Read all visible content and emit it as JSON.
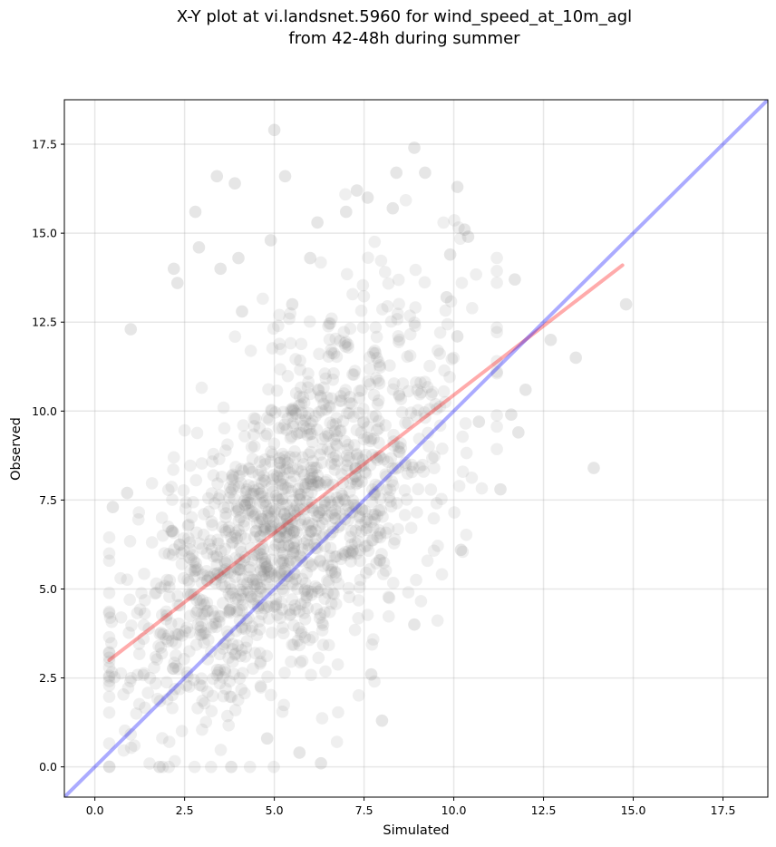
{
  "chart_data": {
    "type": "scatter",
    "title_line1": "X-Y plot at vi.landsnet.5960 for wind_speed_at_10m_agl",
    "title_line2": "from 42-48h during summer",
    "xlabel": "Simulated",
    "ylabel": "Observed",
    "xlim": [
      -0.85,
      18.75
    ],
    "ylim": [
      -0.85,
      18.75
    ],
    "x_ticks": [
      "0.0",
      "2.5",
      "5.0",
      "7.5",
      "10.0",
      "12.5",
      "15.0",
      "17.5"
    ],
    "y_ticks": [
      "0.0",
      "2.5",
      "5.0",
      "7.5",
      "10.0",
      "12.5",
      "15.0",
      "17.5"
    ],
    "grid": true,
    "point_color": "#808080",
    "regression_color": "#ff0000",
    "identity_color": "#0000ff",
    "regression_line": {
      "x": [
        0.4,
        14.7
      ],
      "y": [
        3.0,
        14.1
      ]
    },
    "identity_line": {
      "x": [
        -0.85,
        18.75
      ],
      "y": [
        -0.85,
        18.75
      ]
    },
    "outliers": [
      [
        1.0,
        12.3
      ],
      [
        2.2,
        14.0
      ],
      [
        2.8,
        15.6
      ],
      [
        3.4,
        16.6
      ],
      [
        3.9,
        16.4
      ],
      [
        5.0,
        17.9
      ],
      [
        5.3,
        16.6
      ],
      [
        7.3,
        16.2
      ],
      [
        8.9,
        17.4
      ],
      [
        8.4,
        16.7
      ],
      [
        9.2,
        16.7
      ],
      [
        10.1,
        16.3
      ],
      [
        7.6,
        16.0
      ],
      [
        6.2,
        15.3
      ],
      [
        4.9,
        14.8
      ],
      [
        2.9,
        14.6
      ],
      [
        2.3,
        13.6
      ],
      [
        4.1,
        12.8
      ],
      [
        13.9,
        8.4
      ],
      [
        13.4,
        11.5
      ],
      [
        12.7,
        12.0
      ],
      [
        14.8,
        13.0
      ],
      [
        11.7,
        13.7
      ],
      [
        11.3,
        7.8
      ],
      [
        12.0,
        10.6
      ],
      [
        11.8,
        9.4
      ],
      [
        11.6,
        9.9
      ],
      [
        8.0,
        1.3
      ],
      [
        6.3,
        0.1
      ],
      [
        4.8,
        0.8
      ],
      [
        1.8,
        0.0
      ],
      [
        3.8,
        0.0
      ],
      [
        5.7,
        0.4
      ],
      [
        7.7,
        2.6
      ],
      [
        8.9,
        4.0
      ],
      [
        0.5,
        7.3
      ],
      [
        0.9,
        7.7
      ],
      [
        10.2,
        6.1
      ],
      [
        10.7,
        9.7
      ],
      [
        9.9,
        14.4
      ],
      [
        10.3,
        15.1
      ],
      [
        10.4,
        14.9
      ],
      [
        8.3,
        15.7
      ],
      [
        7.0,
        15.6
      ],
      [
        6.0,
        14.3
      ],
      [
        3.5,
        14.0
      ],
      [
        4.0,
        14.3
      ],
      [
        5.5,
        13.0
      ],
      [
        9.8,
        13.2
      ],
      [
        10.1,
        12.1
      ]
    ],
    "cluster": {
      "count": 1400,
      "x_mean": 5.45,
      "x_sd": 2.3,
      "x_min": 0.4,
      "x_max": 11.2,
      "y_intercept": 2.7,
      "y_slope": 0.78,
      "y_noise_sd": 2.3,
      "y_min": 0.0,
      "y_max": 17.9
    }
  }
}
